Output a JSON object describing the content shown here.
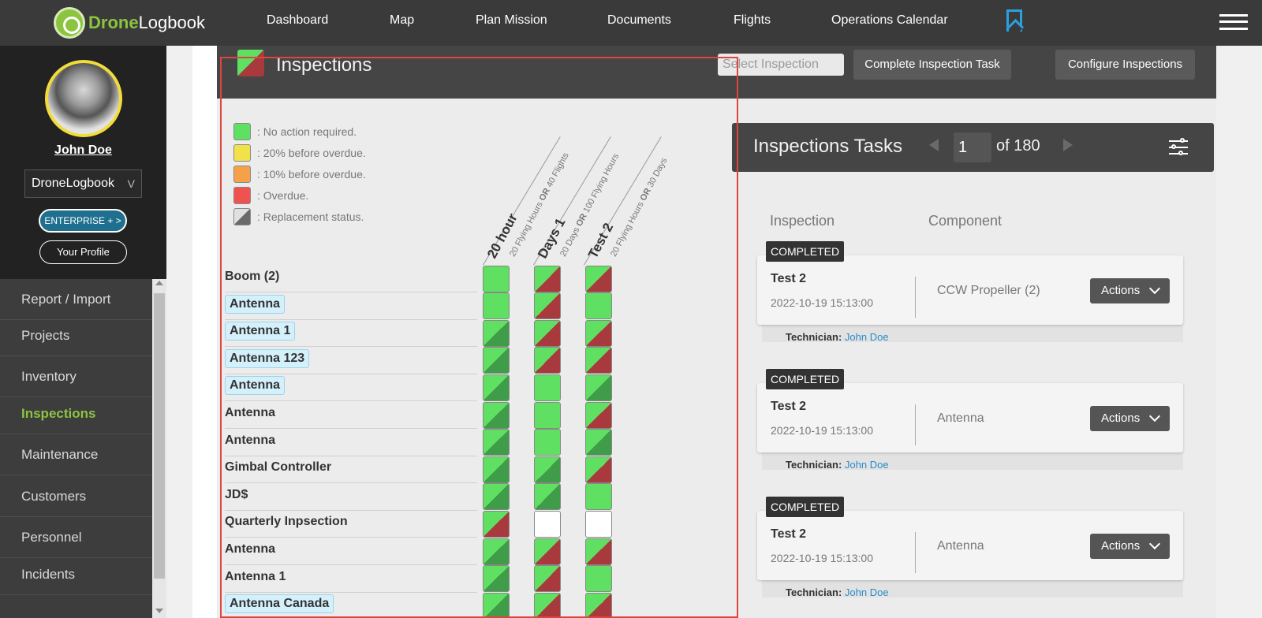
{
  "brand": {
    "name_a": "Drone",
    "name_b": "Logbook"
  },
  "nav": [
    "Dashboard",
    "Map",
    "Plan Mission",
    "Documents",
    "Flights",
    "Operations Calendar"
  ],
  "user": {
    "name": "John Doe",
    "company": "DroneLogbook",
    "enterprise_label": "ENTERPRISE + >",
    "profile_label": "Your Profile"
  },
  "sidebar": {
    "items": [
      "Report / Import",
      "Projects",
      "Inventory",
      "Inspections",
      "Maintenance",
      "Customers",
      "Personnel",
      "Incidents"
    ],
    "active": "Inspections"
  },
  "page": {
    "title": "Inspections",
    "select_placeholder": "Select Inspection",
    "complete_btn": "Complete Inspection Task",
    "configure_btn": "Configure Inspections"
  },
  "legend": [
    {
      "color": "#5fe062",
      "label": ": No action required."
    },
    {
      "color": "#f2e24a",
      "label": ": 20% before overdue."
    },
    {
      "color": "#f4a14a",
      "label": ": 10% before overdue."
    },
    {
      "color": "#f0524f",
      "label": ": Overdue."
    },
    {
      "color": "split-grey",
      "label": ": Replacement status."
    }
  ],
  "columns": [
    {
      "title": "20 hour",
      "pre": "20 Flying Hours ",
      "op": "OR",
      "post": " 40 Flights"
    },
    {
      "title": "Days 1",
      "pre": "20 Days ",
      "op": "OR",
      "post": " 100 Flying Hours"
    },
    {
      "title": "Test 2",
      "pre": "20 Flying Hours ",
      "op": "OR",
      "post": " 30 Days"
    }
  ],
  "rows": [
    {
      "name": "Boom (2)",
      "chip": false,
      "cells": [
        "green",
        "gr",
        "gr"
      ]
    },
    {
      "name": "Antenna",
      "chip": true,
      "cells": [
        "green",
        "gr",
        "green"
      ]
    },
    {
      "name": "Antenna 1",
      "chip": true,
      "cells": [
        "dg",
        "gr",
        "gr"
      ]
    },
    {
      "name": "Antenna 123",
      "chip": true,
      "cells": [
        "dg",
        "gr",
        "gr"
      ]
    },
    {
      "name": "Antenna",
      "chip": true,
      "cells": [
        "dg",
        "green",
        "dg"
      ]
    },
    {
      "name": "Antenna",
      "chip": false,
      "cells": [
        "dg",
        "green",
        "gr"
      ]
    },
    {
      "name": "Antenna",
      "chip": false,
      "cells": [
        "dg",
        "green",
        "dg"
      ]
    },
    {
      "name": "Gimbal Controller",
      "chip": false,
      "cells": [
        "dg",
        "dg",
        "gr"
      ]
    },
    {
      "name": "JD$",
      "chip": false,
      "cells": [
        "dg",
        "dg",
        "green"
      ]
    },
    {
      "name": "Quarterly Inpsection",
      "chip": false,
      "cells": [
        "gr",
        "white",
        "white"
      ]
    },
    {
      "name": "Antenna",
      "chip": false,
      "cells": [
        "dg",
        "gr",
        "gr"
      ]
    },
    {
      "name": "Antenna 1",
      "chip": false,
      "cells": [
        "dg",
        "gr",
        "green"
      ]
    },
    {
      "name": "Antenna Canada",
      "chip": true,
      "cells": [
        "dg",
        "gr",
        "gr"
      ]
    }
  ],
  "tasks": {
    "title": "Inspections Tasks",
    "page": "1",
    "of_label": "of 180",
    "col_inspection": "Inspection",
    "col_component": "Component",
    "technician_label": "Technician:",
    "actions_label": "Actions",
    "items": [
      {
        "status": "COMPLETED",
        "name": "Test 2",
        "date": "2022-10-19 15:13:00",
        "component": "CCW Propeller (2)",
        "technician": "John Doe"
      },
      {
        "status": "COMPLETED",
        "name": "Test 2",
        "date": "2022-10-19 15:13:00",
        "component": "Antenna",
        "technician": "John Doe"
      },
      {
        "status": "COMPLETED",
        "name": "Test 2",
        "date": "2022-10-19 15:13:00",
        "component": "Antenna",
        "technician": "John Doe"
      }
    ]
  }
}
